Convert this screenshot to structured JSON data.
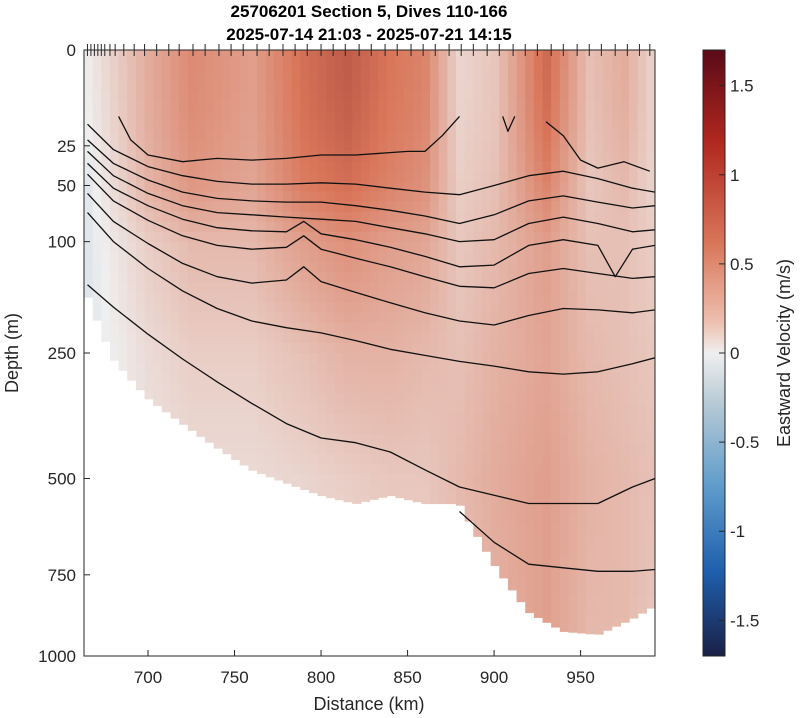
{
  "chart_data": {
    "type": "heatmap",
    "title": "25706201 Section 5, Dives 110-166",
    "subtitle": "2025-07-14 21:03 - 2025-07-21 14:15",
    "xlabel": "Distance (km)",
    "ylabel": "Depth (m)",
    "colorbar_label": "Eastward Velocity (m/s)",
    "xlim": [
      663,
      993
    ],
    "ylim": [
      0,
      1000
    ],
    "y_scale": "sqrt",
    "x_ticks": [
      700,
      750,
      800,
      850,
      900,
      950
    ],
    "y_ticks": [
      0,
      25,
      50,
      100,
      250,
      500,
      750,
      1000
    ],
    "clim": [
      -1.7,
      1.7
    ],
    "colorbar_ticks": [
      1.5,
      1,
      0.5,
      0,
      -0.5,
      -1,
      -1.5
    ],
    "colormap": {
      "negative": "#1a2b5c",
      "mid_negative": "#3a7fbf",
      "zero": "#efefef",
      "mid_positive": "#d9765a",
      "positive": "#6e0f1a"
    },
    "dive_positions": [
      665,
      667,
      669,
      671,
      673,
      675,
      678,
      681,
      686,
      692,
      698,
      705,
      712,
      718,
      726,
      733,
      741,
      748,
      755,
      763,
      770,
      778,
      785,
      792,
      800,
      807,
      814,
      822,
      829,
      837,
      844,
      852,
      859,
      866,
      874,
      881,
      888,
      896,
      903,
      911,
      918,
      925,
      933,
      940,
      948,
      955,
      962,
      970,
      977,
      984,
      990
    ],
    "bottom_depth": {
      "distance": [
        663,
        680,
        700,
        720,
        740,
        760,
        780,
        800,
        820,
        840,
        860,
        880,
        900,
        920,
        940,
        960,
        980,
        993
      ],
      "depth": [
        150,
        260,
        330,
        380,
        430,
        480,
        510,
        540,
        560,
        540,
        560,
        560,
        720,
        860,
        920,
        930,
        880,
        840
      ]
    },
    "velocity_profiles": [
      {
        "distance": 663,
        "depth": [
          0,
          50,
          100,
          250,
          500,
          1000
        ],
        "velocity": [
          0.0,
          -0.1,
          -0.1,
          -0.1,
          -0.1,
          -0.1
        ]
      },
      {
        "distance": 700,
        "depth": [
          0,
          50,
          100,
          250,
          500,
          1000
        ],
        "velocity": [
          0.5,
          0.45,
          0.25,
          0.15,
          0.1,
          0.1
        ]
      },
      {
        "distance": 725,
        "depth": [
          0,
          50,
          100,
          250,
          500,
          1000
        ],
        "velocity": [
          0.75,
          0.65,
          0.4,
          0.25,
          0.15,
          0.1
        ]
      },
      {
        "distance": 760,
        "depth": [
          0,
          50,
          100,
          250,
          500,
          1000
        ],
        "velocity": [
          0.6,
          0.55,
          0.4,
          0.25,
          0.15,
          0.1
        ]
      },
      {
        "distance": 790,
        "depth": [
          0,
          50,
          100,
          250,
          500,
          1000
        ],
        "velocity": [
          0.95,
          0.85,
          0.6,
          0.35,
          0.2,
          0.1
        ]
      },
      {
        "distance": 815,
        "depth": [
          0,
          50,
          100,
          250,
          500,
          1000
        ],
        "velocity": [
          1.1,
          0.95,
          0.7,
          0.45,
          0.25,
          0.15
        ]
      },
      {
        "distance": 840,
        "depth": [
          0,
          50,
          100,
          250,
          500,
          1000
        ],
        "velocity": [
          0.9,
          0.8,
          0.6,
          0.45,
          0.3,
          0.2
        ]
      },
      {
        "distance": 860,
        "depth": [
          0,
          50,
          100,
          250,
          500,
          1000
        ],
        "velocity": [
          0.8,
          0.7,
          0.55,
          0.4,
          0.3,
          0.2
        ]
      },
      {
        "distance": 880,
        "depth": [
          0,
          50,
          100,
          250,
          500,
          1000
        ],
        "velocity": [
          0.2,
          0.25,
          0.3,
          0.35,
          0.4,
          0.3
        ]
      },
      {
        "distance": 900,
        "depth": [
          0,
          50,
          100,
          250,
          500,
          1000
        ],
        "velocity": [
          0.3,
          0.35,
          0.4,
          0.45,
          0.5,
          0.45
        ]
      },
      {
        "distance": 930,
        "depth": [
          0,
          50,
          100,
          250,
          500,
          1000
        ],
        "velocity": [
          1.0,
          0.8,
          0.6,
          0.55,
          0.6,
          0.6
        ]
      },
      {
        "distance": 955,
        "depth": [
          0,
          50,
          100,
          250,
          500,
          1000
        ],
        "velocity": [
          0.35,
          0.3,
          0.35,
          0.4,
          0.45,
          0.4
        ]
      },
      {
        "distance": 975,
        "depth": [
          0,
          50,
          100,
          250,
          500,
          1000
        ],
        "velocity": [
          0.5,
          0.4,
          0.35,
          0.35,
          0.4,
          0.4
        ]
      },
      {
        "distance": 993,
        "depth": [
          0,
          50,
          100,
          250,
          500,
          1000
        ],
        "velocity": [
          0.2,
          0.2,
          0.25,
          0.3,
          0.35,
          0.3
        ]
      }
    ],
    "contour_lines": [
      {
        "distance": [
          683,
          690,
          700,
          720,
          740,
          760,
          780,
          800,
          820,
          850,
          860,
          870,
          880
        ],
        "depth": [
          12,
          22,
          30,
          34,
          32,
          33,
          32,
          30,
          30,
          28,
          28,
          20,
          12
        ]
      },
      {
        "distance": [
          905,
          908,
          912
        ],
        "depth": [
          12,
          18,
          12
        ]
      },
      {
        "distance": [
          930,
          940,
          950,
          960,
          975,
          990
        ],
        "depth": [
          14,
          20,
          33,
          38,
          34,
          40
        ]
      },
      {
        "distance": [
          665,
          680,
          700,
          720,
          740,
          760,
          780,
          800,
          820,
          840,
          860,
          880,
          900,
          920,
          940,
          960,
          980,
          993
        ],
        "depth": [
          15,
          27,
          37,
          43,
          47,
          49,
          49,
          48,
          49,
          52,
          55,
          57,
          50,
          43,
          40,
          45,
          52,
          55
        ]
      },
      {
        "distance": [
          665,
          680,
          700,
          720,
          740,
          760,
          780,
          800,
          820,
          840,
          860,
          880,
          900,
          920,
          940,
          960,
          980,
          993
        ],
        "depth": [
          22,
          35,
          46,
          55,
          60,
          62,
          63,
          63,
          66,
          70,
          75,
          82,
          74,
          62,
          58,
          63,
          68,
          66
        ]
      },
      {
        "distance": [
          665,
          680,
          700,
          720,
          740,
          760,
          780,
          800,
          820,
          840,
          860,
          880,
          900,
          920,
          940,
          960,
          980,
          993
        ],
        "depth": [
          28,
          43,
          56,
          66,
          72,
          74,
          76,
          78,
          80,
          86,
          92,
          100,
          98,
          82,
          76,
          82,
          90,
          88
        ]
      },
      {
        "distance": [
          665,
          680,
          700,
          720,
          740,
          760,
          780,
          790,
          800,
          820,
          840,
          860,
          880,
          900,
          920,
          940,
          960,
          970,
          980,
          993
        ],
        "depth": [
          35,
          52,
          66,
          78,
          86,
          89,
          90,
          80,
          92,
          98,
          106,
          116,
          128,
          126,
          104,
          98,
          104,
          140,
          108,
          104
        ]
      },
      {
        "distance": [
          665,
          680,
          700,
          720,
          740,
          760,
          780,
          790,
          800,
          820,
          840,
          860,
          880,
          900,
          920,
          940,
          960,
          980,
          993
        ],
        "depth": [
          42,
          62,
          79,
          94,
          104,
          108,
          106,
          94,
          108,
          118,
          128,
          140,
          152,
          154,
          136,
          130,
          136,
          142,
          140
        ]
      },
      {
        "distance": [
          665,
          680,
          700,
          720,
          740,
          760,
          780,
          790,
          800,
          820,
          840,
          860,
          880,
          900,
          920,
          940,
          960,
          980,
          993
        ],
        "depth": [
          56,
          80,
          102,
          124,
          140,
          148,
          144,
          128,
          146,
          160,
          174,
          188,
          200,
          206,
          192,
          182,
          184,
          188,
          184
        ]
      },
      {
        "distance": [
          665,
          680,
          700,
          720,
          740,
          760,
          780,
          800,
          820,
          840,
          860,
          880,
          900,
          920,
          940,
          960,
          980,
          993
        ],
        "depth": [
          72,
          100,
          130,
          158,
          182,
          200,
          210,
          218,
          230,
          244,
          254,
          264,
          272,
          282,
          286,
          282,
          268,
          258
        ]
      },
      {
        "distance": [
          665,
          680,
          700,
          720,
          740,
          760,
          780,
          800,
          820,
          840,
          860,
          880,
          900,
          920,
          940,
          960,
          980,
          993
        ],
        "depth": [
          150,
          180,
          220,
          260,
          300,
          340,
          380,
          410,
          420,
          440,
          480,
          520,
          540,
          560,
          560,
          560,
          520,
          500
        ]
      },
      {
        "distance": [
          880,
          900,
          920,
          940,
          960,
          980,
          993
        ],
        "depth": [
          580,
          660,
          720,
          730,
          740,
          740,
          735
        ]
      }
    ]
  }
}
